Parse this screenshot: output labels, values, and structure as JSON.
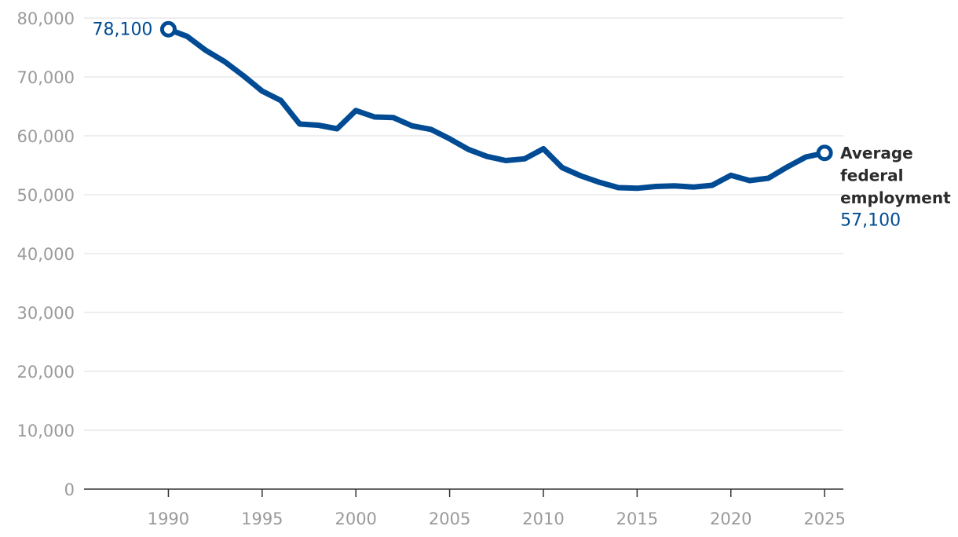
{
  "chart_data": {
    "type": "line",
    "title": "",
    "xlabel": "",
    "ylabel": "",
    "xlim": [
      1985.5,
      2026
    ],
    "ylim": [
      0,
      80000
    ],
    "x_ticks": [
      1990,
      1995,
      2000,
      2005,
      2010,
      2015,
      2020,
      2025
    ],
    "x_tick_labels": [
      "1990",
      "1995",
      "2000",
      "2005",
      "2010",
      "2015",
      "2020",
      "2025"
    ],
    "y_ticks": [
      0,
      10000,
      20000,
      30000,
      40000,
      50000,
      60000,
      70000,
      80000
    ],
    "y_tick_labels": [
      "0",
      "10,000",
      "20,000",
      "30,000",
      "40,000",
      "50,000",
      "60,000",
      "70,000",
      "80,000"
    ],
    "grid": true,
    "series": [
      {
        "name": "Average federal employment",
        "color": "#004b93",
        "x": [
          1990,
          1991,
          1992,
          1993,
          1994,
          1995,
          1996,
          1997,
          1998,
          1999,
          2000,
          2001,
          2002,
          2003,
          2004,
          2005,
          2006,
          2007,
          2008,
          2009,
          2010,
          2011,
          2012,
          2013,
          2014,
          2015,
          2016,
          2017,
          2018,
          2019,
          2020,
          2021,
          2022,
          2023,
          2024,
          2025
        ],
        "values": [
          78100,
          76900,
          74500,
          72600,
          70200,
          67600,
          66000,
          62000,
          61800,
          61200,
          64300,
          63200,
          63100,
          61700,
          61100,
          59500,
          57700,
          56500,
          55800,
          56100,
          57800,
          54600,
          53200,
          52100,
          51200,
          51100,
          51400,
          51500,
          51300,
          51600,
          53300,
          52400,
          52800,
          54700,
          56400,
          57100
        ]
      }
    ],
    "annotations": {
      "start_value": "78,100",
      "end_label_lines": [
        "Average",
        "federal",
        "employment"
      ],
      "end_value": "57,100"
    }
  }
}
